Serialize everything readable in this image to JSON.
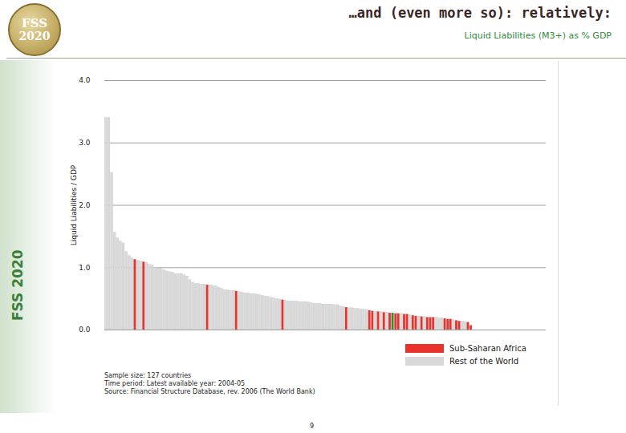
{
  "chart_data": {
    "type": "bar",
    "title": "…and (even more so): relatively:",
    "subtitle": "Liquid Liabilities (M3+) as % GDP",
    "y_label": "Liquid Liabilities / GDP",
    "logo_text": [
      "FSS",
      "2020"
    ],
    "side_text": "FSS 2020",
    "notes": [
      "Sample size: 127 countries",
      "Time period: Latest available year: 2004-05",
      "Source: Financial Structure Database, rev. 2006 (The World Bank)"
    ],
    "page_number": "9",
    "categories": [
      null,
      null,
      null,
      null,
      null,
      null,
      null,
      null,
      null,
      null,
      null,
      null,
      null,
      null,
      null,
      null,
      null,
      null,
      null,
      null,
      null,
      null,
      null,
      null,
      null,
      null,
      null,
      null,
      null,
      null,
      null,
      null,
      null,
      null,
      null,
      null,
      null,
      null,
      null,
      null,
      null,
      null,
      null,
      null,
      null,
      null,
      null,
      null,
      null,
      null,
      null,
      null,
      null,
      null,
      null,
      null,
      null,
      null,
      null,
      null,
      null,
      null,
      null,
      null,
      null,
      null,
      null,
      null,
      null,
      null,
      null,
      null,
      null,
      null,
      null,
      null,
      null,
      null,
      null,
      null,
      null,
      null,
      null,
      null,
      null,
      null,
      null,
      null,
      null,
      null,
      null,
      null,
      null,
      null,
      null,
      null,
      null,
      null,
      null,
      null,
      null,
      null,
      null,
      null,
      null,
      null,
      null,
      null,
      null,
      null,
      null,
      null,
      null,
      null,
      null,
      null,
      null,
      null,
      null,
      null,
      null,
      null,
      null,
      null,
      null,
      null,
      null
    ],
    "series": [
      {
        "name": "Sub-Saharan Africa",
        "color": "#e8322c",
        "values": [
          null,
          null,
          null,
          null,
          null,
          null,
          null,
          null,
          null,
          null,
          1.13,
          null,
          null,
          1.09,
          null,
          null,
          null,
          null,
          null,
          null,
          null,
          null,
          null,
          null,
          null,
          null,
          null,
          null,
          null,
          null,
          null,
          null,
          null,
          null,
          null,
          0.72,
          null,
          null,
          null,
          null,
          null,
          null,
          null,
          null,
          null,
          0.62,
          null,
          null,
          null,
          null,
          null,
          null,
          null,
          null,
          null,
          null,
          null,
          null,
          null,
          null,
          null,
          0.48,
          null,
          null,
          null,
          null,
          null,
          null,
          null,
          null,
          null,
          null,
          null,
          null,
          null,
          null,
          null,
          null,
          null,
          null,
          null,
          null,
          null,
          0.36,
          null,
          null,
          null,
          null,
          null,
          null,
          null,
          0.31,
          0.3,
          null,
          0.29,
          null,
          0.28,
          null,
          0.27,
          null,
          0.26,
          0.26,
          null,
          0.25,
          0.25,
          null,
          0.23,
          0.22,
          null,
          0.21,
          null,
          0.2,
          0.2,
          0.2,
          null,
          null,
          null,
          0.18,
          0.17,
          0.17,
          null,
          0.15,
          0.14,
          null,
          null,
          0.12,
          0.07
        ]
      },
      {
        "name": "Rest of the World",
        "color": "#d9d9d9",
        "values": [
          3.4,
          3.4,
          2.52,
          1.56,
          1.47,
          1.42,
          1.39,
          1.25,
          1.19,
          1.15,
          null,
          1.11,
          1.1,
          null,
          1.08,
          1.05,
          1.04,
          1.0,
          0.99,
          0.99,
          0.96,
          0.94,
          0.93,
          0.92,
          0.9,
          0.9,
          0.9,
          0.88,
          0.86,
          0.8,
          0.76,
          0.74,
          0.74,
          0.73,
          0.73,
          null,
          0.72,
          0.71,
          0.7,
          0.68,
          0.66,
          0.64,
          0.64,
          0.63,
          0.63,
          null,
          0.61,
          0.6,
          0.59,
          0.59,
          0.58,
          0.58,
          0.57,
          0.56,
          0.55,
          0.54,
          0.53,
          0.52,
          0.51,
          0.5,
          0.49,
          null,
          0.47,
          0.46,
          0.46,
          0.46,
          0.46,
          0.45,
          0.45,
          0.45,
          0.44,
          0.43,
          0.42,
          0.42,
          0.42,
          0.41,
          0.41,
          0.41,
          0.41,
          0.4,
          0.4,
          0.38,
          0.37,
          null,
          0.35,
          0.35,
          0.34,
          0.34,
          0.33,
          0.33,
          0.32,
          null,
          null,
          0.29,
          null,
          0.29,
          null,
          0.28,
          null,
          null,
          null,
          null,
          0.26,
          null,
          null,
          0.24,
          null,
          null,
          0.22,
          null,
          0.21,
          null,
          null,
          null,
          0.2,
          0.19,
          0.19,
          null,
          null,
          null,
          0.16,
          null,
          null,
          0.14,
          0.13,
          null,
          null
        ]
      },
      {
        "color": "#2e8b2e",
        "values": [
          null,
          null,
          null,
          null,
          null,
          null,
          null,
          null,
          null,
          null,
          null,
          null,
          null,
          null,
          null,
          null,
          null,
          null,
          null,
          null,
          null,
          null,
          null,
          null,
          null,
          null,
          null,
          null,
          null,
          null,
          null,
          null,
          null,
          null,
          null,
          null,
          null,
          null,
          null,
          null,
          null,
          null,
          null,
          null,
          null,
          null,
          null,
          null,
          null,
          null,
          null,
          null,
          null,
          null,
          null,
          null,
          null,
          null,
          null,
          null,
          null,
          null,
          null,
          null,
          null,
          null,
          null,
          null,
          null,
          null,
          null,
          null,
          null,
          null,
          null,
          null,
          null,
          null,
          null,
          null,
          null,
          null,
          null,
          null,
          null,
          null,
          null,
          null,
          null,
          null,
          null,
          null,
          null,
          null,
          null,
          null,
          null,
          null,
          null,
          0.27,
          null,
          null,
          null,
          null,
          null,
          null,
          null,
          null,
          null,
          null,
          null,
          null,
          null,
          null,
          null,
          null,
          null,
          null,
          null,
          null,
          null,
          null,
          null,
          null,
          null,
          null,
          null
        ]
      }
    ],
    "ylim": [
      0,
      4
    ],
    "yticks": [
      {
        "value": 0,
        "label": "0.0"
      },
      {
        "value": 1,
        "label": "1.0"
      },
      {
        "value": 2,
        "label": "2.0"
      },
      {
        "value": 3,
        "label": "3.0"
      },
      {
        "value": 4,
        "label": "4.0"
      }
    ],
    "grid": true,
    "legend": "bottom right",
    "tick_labels": "y"
  }
}
